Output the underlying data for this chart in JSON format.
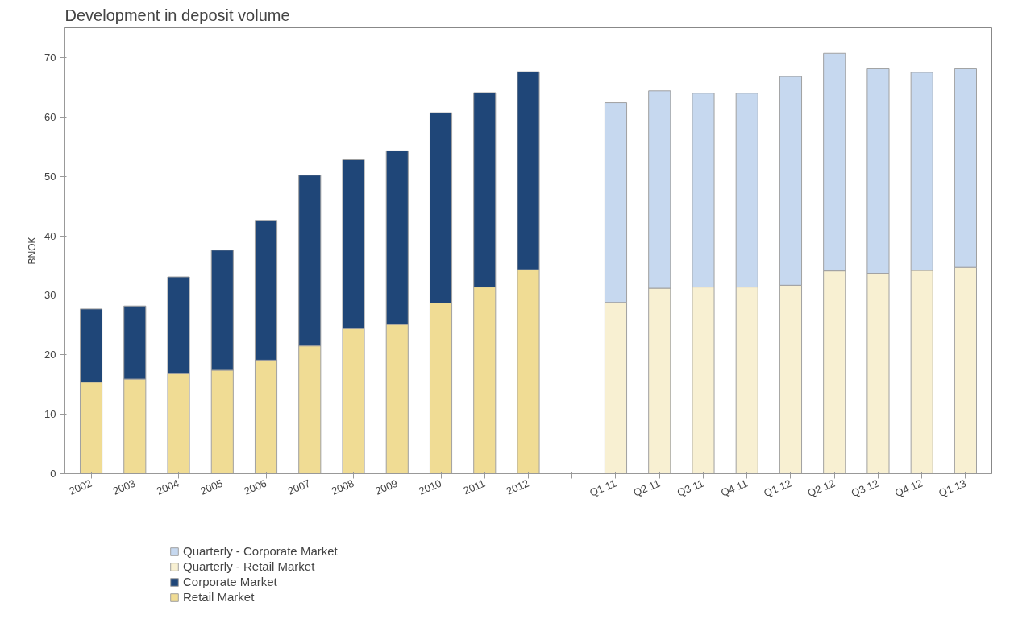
{
  "chart_data": {
    "type": "bar",
    "title": "Development in deposit volume",
    "ylabel": "BNOK",
    "stacked": true,
    "categories": [
      "2002",
      "2003",
      "2004",
      "2005",
      "2006",
      "2007",
      "2008",
      "2009",
      "2010",
      "2011",
      "2012",
      null,
      "Q1 11",
      "Q2 11",
      "Q3 11",
      "Q4 11",
      "Q1 12",
      "Q2 12",
      "Q3 12",
      "Q4 12",
      "Q1 13"
    ],
    "series": [
      {
        "name": "Retail Market",
        "color": "#f0dc94",
        "values": [
          15.4,
          15.9,
          16.8,
          17.4,
          19.1,
          21.5,
          24.4,
          25.1,
          28.7,
          31.4,
          34.3,
          null,
          null,
          null,
          null,
          null,
          null,
          null,
          null,
          null,
          null
        ]
      },
      {
        "name": "Corporate Market",
        "color": "#1f4678",
        "values": [
          12.3,
          12.3,
          16.3,
          20.2,
          23.5,
          28.7,
          28.4,
          29.2,
          32.0,
          32.7,
          33.3,
          null,
          null,
          null,
          null,
          null,
          null,
          null,
          null,
          null,
          null
        ]
      },
      {
        "name": "Quarterly - Retail Market",
        "color": "#f8f0d2",
        "values": [
          null,
          null,
          null,
          null,
          null,
          null,
          null,
          null,
          null,
          null,
          null,
          null,
          28.8,
          31.2,
          31.4,
          31.4,
          31.7,
          34.1,
          33.7,
          34.2,
          34.7
        ]
      },
      {
        "name": "Quarterly - Corporate Market",
        "color": "#c6d8ef",
        "values": [
          null,
          null,
          null,
          null,
          null,
          null,
          null,
          null,
          null,
          null,
          null,
          null,
          33.6,
          33.2,
          32.6,
          32.6,
          35.1,
          36.6,
          34.4,
          33.3,
          33.4
        ]
      }
    ],
    "ylim": [
      0,
      75
    ],
    "yticks": [
      0,
      10,
      20,
      30,
      40,
      50,
      60,
      70
    ],
    "legend": "bottom left"
  }
}
